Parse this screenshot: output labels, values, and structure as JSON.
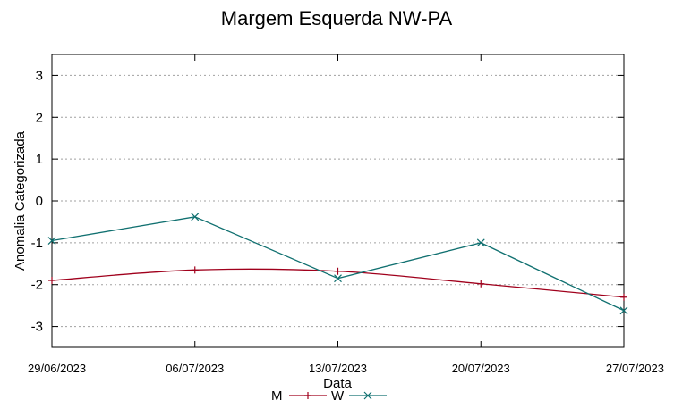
{
  "chart_data": {
    "type": "line",
    "title": "Margem Esquerda NW-PA",
    "xlabel": "Data",
    "ylabel": "Anomalia Categorizada",
    "x": [
      "29/06/2023",
      "06/07/2023",
      "13/07/2023",
      "20/07/2023",
      "27/07/2023"
    ],
    "ylim": [
      -3.5,
      3.5
    ],
    "yticks": [
      3,
      2,
      1,
      0,
      -1,
      -2,
      -3
    ],
    "grid": true,
    "legend_position": "bottom-center",
    "series": [
      {
        "name": "M",
        "color": "#a0001c",
        "marker": "plus",
        "smooth": true,
        "values": [
          -1.9,
          -1.65,
          -1.68,
          -1.98,
          -2.3
        ]
      },
      {
        "name": "W",
        "color": "#107070",
        "marker": "x",
        "smooth": false,
        "values": [
          -0.95,
          -0.38,
          -1.85,
          -1.0,
          -2.62
        ]
      }
    ]
  }
}
